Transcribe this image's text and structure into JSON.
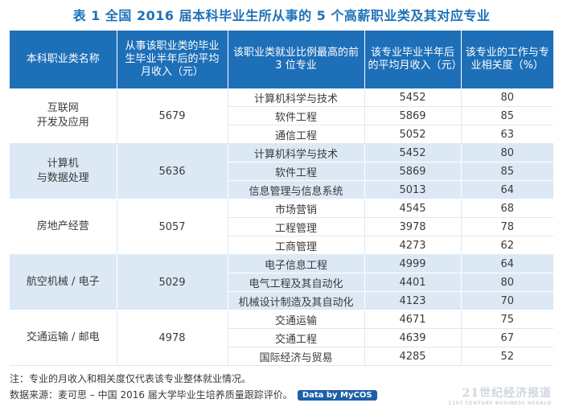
{
  "title": "表 1  全国 2016 届本科毕业生所从事的 5 个高薪职业类及其对应专业",
  "headers": [
    "本科职业类名称",
    "从事该职业类的毕业生毕业半年后的平均月收入（元）",
    "该职业类就业比例最高的前 3 位专业",
    "该专业毕业半年后的平均月收入（元）",
    "该专业的工作与专业相关度（%）"
  ],
  "groups": [
    {
      "category": "互联网\n开发及应用",
      "income": "5679",
      "majors": [
        {
          "name": "计算机科学与技术",
          "income": "5452",
          "relevance": "80"
        },
        {
          "name": "软件工程",
          "income": "5869",
          "relevance": "85"
        },
        {
          "name": "通信工程",
          "income": "5052",
          "relevance": "63"
        }
      ]
    },
    {
      "category": "计算机\n与数据处理",
      "income": "5636",
      "majors": [
        {
          "name": "计算机科学与技术",
          "income": "5452",
          "relevance": "80"
        },
        {
          "name": "软件工程",
          "income": "5869",
          "relevance": "85"
        },
        {
          "name": "信息管理与信息系统",
          "income": "5013",
          "relevance": "64"
        }
      ]
    },
    {
      "category": "房地产经营",
      "income": "5057",
      "majors": [
        {
          "name": "市场营销",
          "income": "4545",
          "relevance": "68"
        },
        {
          "name": "工程管理",
          "income": "3978",
          "relevance": "78"
        },
        {
          "name": "工商管理",
          "income": "4273",
          "relevance": "62"
        }
      ]
    },
    {
      "category": "航空机械 / 电子",
      "income": "5029",
      "majors": [
        {
          "name": "电子信息工程",
          "income": "4999",
          "relevance": "64"
        },
        {
          "name": "电气工程及其自动化",
          "income": "4401",
          "relevance": "80"
        },
        {
          "name": "机械设计制造及其自动化",
          "income": "4123",
          "relevance": "70"
        }
      ]
    },
    {
      "category": "交通运输 / 邮电",
      "income": "4978",
      "majors": [
        {
          "name": "交通运输",
          "income": "4671",
          "relevance": "75"
        },
        {
          "name": "交通工程",
          "income": "4639",
          "relevance": "67"
        },
        {
          "name": "国际经济与贸易",
          "income": "4285",
          "relevance": "52"
        }
      ]
    }
  ],
  "note": "注：专业的月收入和相关度仅代表该专业整体就业情况。",
  "source": "数据来源：麦可思 – 中国 2016 届大学毕业生培养质量跟踪评价。",
  "badge": "Data by MyCOS",
  "watermark": {
    "main": "21世纪经济报道",
    "sub": "21ST CENTURY BUSINESS HERALD"
  }
}
